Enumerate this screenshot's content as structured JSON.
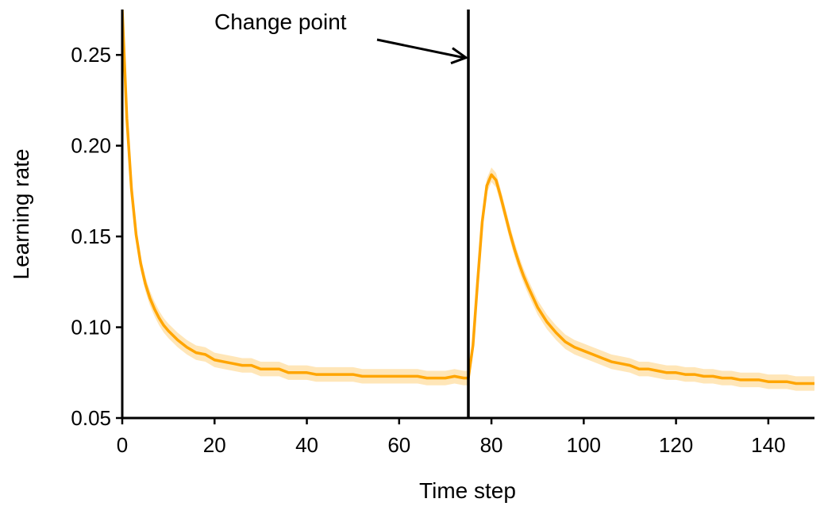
{
  "chart_data": {
    "type": "line",
    "title": "",
    "xlabel": "Time step",
    "ylabel": "Learning rate",
    "xlim": [
      0,
      150
    ],
    "ylim": [
      0.05,
      0.275
    ],
    "x_ticks": [
      0,
      20,
      40,
      60,
      80,
      100,
      120,
      140
    ],
    "x_tick_labels": [
      "0",
      "20",
      "40",
      "60",
      "80",
      "100",
      "120",
      "140"
    ],
    "y_ticks": [
      0.05,
      0.1,
      0.15,
      0.2,
      0.25
    ],
    "y_tick_labels": [
      "0.05",
      "0.10",
      "0.15",
      "0.20",
      "0.25"
    ],
    "grid": false,
    "legend": "none",
    "colors": {
      "line": "#FFA500",
      "band": "#FFA500",
      "change_line": "#000000"
    },
    "change_point": {
      "x": 75,
      "label": "Change point"
    },
    "series": [
      {
        "x": [
          0,
          1,
          2,
          3,
          4,
          5,
          6,
          7,
          8,
          9,
          10,
          12,
          14,
          16,
          18,
          20,
          22,
          24,
          26,
          28,
          30,
          32,
          34,
          36,
          38,
          40,
          42,
          44,
          46,
          48,
          50,
          52,
          54,
          56,
          58,
          60,
          62,
          64,
          66,
          68,
          70,
          72,
          74,
          75,
          76,
          77,
          78,
          79,
          80,
          81,
          82,
          83,
          84,
          85,
          86,
          87,
          88,
          90,
          92,
          94,
          96,
          98,
          100,
          102,
          104,
          106,
          108,
          110,
          112,
          114,
          116,
          118,
          120,
          122,
          124,
          126,
          128,
          130,
          132,
          134,
          136,
          138,
          140,
          142,
          144,
          146,
          148,
          150
        ],
        "y": [
          0.275,
          0.215,
          0.176,
          0.151,
          0.135,
          0.124,
          0.116,
          0.11,
          0.105,
          0.101,
          0.098,
          0.093,
          0.089,
          0.086,
          0.085,
          0.082,
          0.081,
          0.08,
          0.079,
          0.079,
          0.077,
          0.077,
          0.077,
          0.075,
          0.075,
          0.075,
          0.074,
          0.074,
          0.074,
          0.074,
          0.074,
          0.073,
          0.073,
          0.073,
          0.073,
          0.073,
          0.073,
          0.073,
          0.072,
          0.072,
          0.072,
          0.073,
          0.072,
          0.072,
          0.09,
          0.125,
          0.158,
          0.178,
          0.184,
          0.181,
          0.172,
          0.162,
          0.152,
          0.143,
          0.135,
          0.128,
          0.122,
          0.111,
          0.103,
          0.097,
          0.092,
          0.089,
          0.087,
          0.085,
          0.083,
          0.081,
          0.08,
          0.079,
          0.077,
          0.077,
          0.076,
          0.075,
          0.075,
          0.074,
          0.074,
          0.073,
          0.073,
          0.072,
          0.072,
          0.071,
          0.071,
          0.071,
          0.07,
          0.07,
          0.07,
          0.069,
          0.069,
          0.069
        ],
        "band": 0.004
      }
    ]
  }
}
